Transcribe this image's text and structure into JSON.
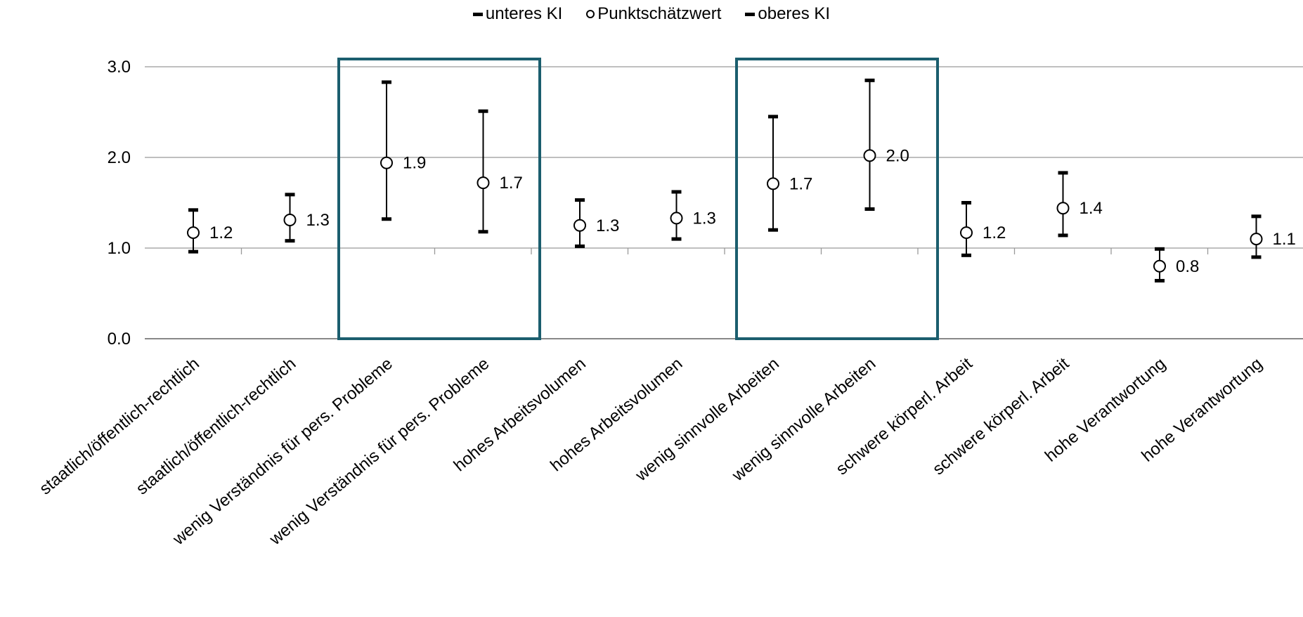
{
  "legend": {
    "lower": "unteres KI",
    "point": "Punktschätzwert",
    "upper": "oberes KI"
  },
  "chart_data": {
    "type": "error-bar",
    "ylim": [
      0,
      3
    ],
    "yticks": [
      "0.0",
      "1.0",
      "2.0",
      "3.0"
    ],
    "grid": true,
    "legend_position": "top-center",
    "highlight_color": "#1b5e6e",
    "highlight_groups": [
      [
        2,
        3
      ],
      [
        6,
        7
      ]
    ],
    "categories": [
      "staatlich/öffentlich-rechtlich",
      "staatlich/öffentlich-rechtlich",
      "wenig Verständnis für pers. Probleme",
      "wenig Verständnis für pers. Probleme",
      "hohes Arbeitsvolumen",
      "hohes Arbeitsvolumen",
      "wenig sinnvolle Arbeiten",
      "wenig sinnvolle Arbeiten",
      "schwere körperl. Arbeit",
      "schwere körperl. Arbeit",
      "hohe Verantwortung",
      "hohe Verantwortung"
    ],
    "series": [
      {
        "name": "unteres KI",
        "values": [
          0.96,
          1.08,
          1.32,
          1.18,
          1.02,
          1.1,
          1.2,
          1.43,
          0.92,
          1.14,
          0.64,
          0.9
        ]
      },
      {
        "name": "Punktschätzwert",
        "values": [
          1.17,
          1.31,
          1.94,
          1.72,
          1.25,
          1.33,
          1.71,
          2.02,
          1.17,
          1.44,
          0.8,
          1.1
        ]
      },
      {
        "name": "oberes KI",
        "values": [
          1.42,
          1.59,
          2.83,
          2.51,
          1.53,
          1.62,
          2.45,
          2.85,
          1.5,
          1.83,
          0.99,
          1.35
        ]
      }
    ],
    "data_labels": [
      "1.2",
      "1.3",
      "1.9",
      "1.7",
      "1.3",
      "1.3",
      "1.7",
      "2.0",
      "1.2",
      "1.4",
      "0.8",
      "1.1"
    ]
  }
}
